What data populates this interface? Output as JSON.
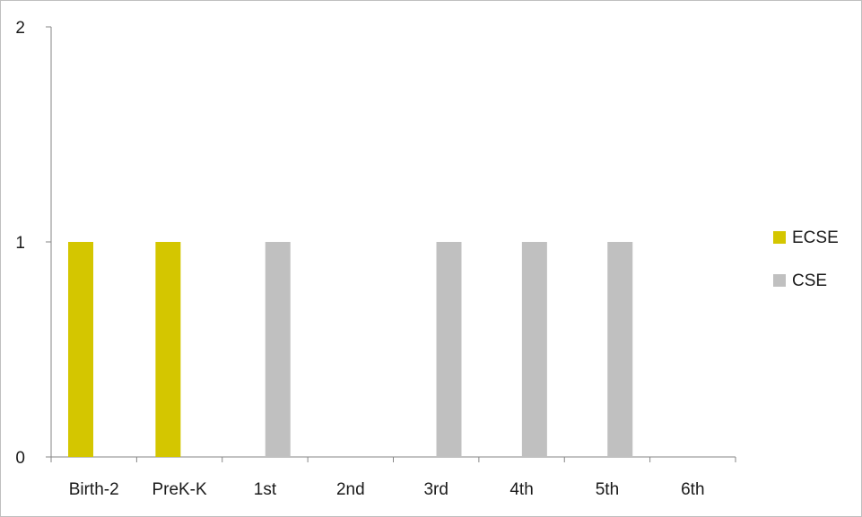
{
  "chart_data": {
    "type": "bar",
    "categories": [
      "Birth-2",
      "PreK-K",
      "1st",
      "2nd",
      "3rd",
      "4th",
      "5th",
      "6th"
    ],
    "series": [
      {
        "name": "ECSE",
        "color": "#d4c600",
        "values": [
          1,
          1,
          0,
          0,
          0,
          0,
          0,
          0
        ]
      },
      {
        "name": "CSE",
        "color": "#c0c0c0",
        "values": [
          0,
          0,
          1,
          0,
          1,
          1,
          1,
          0
        ]
      }
    ],
    "ylim": [
      0,
      2
    ],
    "yticks": [
      0,
      1,
      2
    ],
    "grid": false,
    "legend": "right",
    "title": "",
    "xlabel": "",
    "ylabel": ""
  }
}
